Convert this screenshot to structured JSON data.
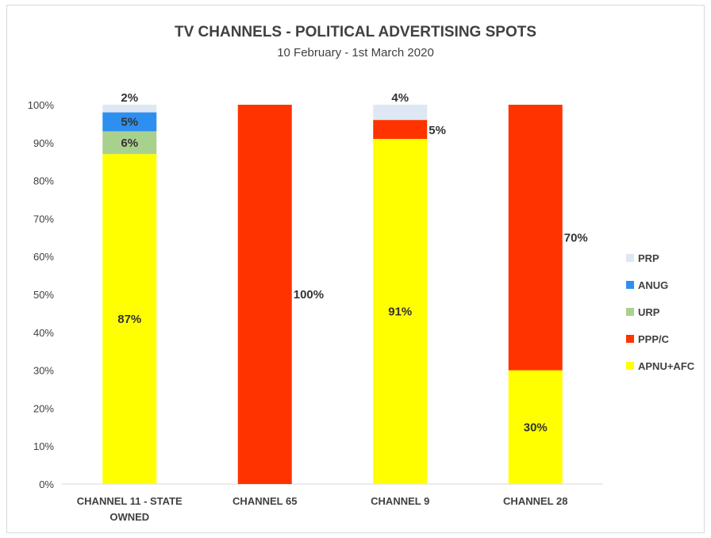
{
  "chart_data": {
    "type": "bar",
    "stacked": true,
    "title": "TV CHANNELS - POLITICAL ADVERTISING SPOTS",
    "subtitle": "10 February - 1st March 2020",
    "categories": [
      [
        "CHANNEL 11 - STATE",
        "OWNED"
      ],
      [
        "CHANNEL 65"
      ],
      [
        "CHANNEL 9"
      ],
      [
        "CHANNEL 28"
      ]
    ],
    "ylim": [
      0,
      100
    ],
    "yticks": [
      0,
      10,
      20,
      30,
      40,
      50,
      60,
      70,
      80,
      90,
      100
    ],
    "ytick_labels": [
      "0%",
      "10%",
      "20%",
      "30%",
      "40%",
      "50%",
      "60%",
      "70%",
      "80%",
      "90%",
      "100%"
    ],
    "grid": false,
    "legend_placement": "right",
    "series": [
      {
        "name": "APNU+AFC",
        "color": "#ffff00",
        "values": [
          87,
          0,
          91,
          30
        ],
        "labels": [
          "87%",
          "",
          "91%",
          "30%"
        ]
      },
      {
        "name": "PPP/C",
        "color": "#ff3300",
        "values": [
          0,
          100,
          5,
          70
        ],
        "labels": [
          "",
          "100%",
          "5%",
          "70%"
        ]
      },
      {
        "name": "URP",
        "color": "#a9d18e",
        "values": [
          6,
          0,
          0,
          0
        ],
        "labels": [
          "6%",
          "",
          "",
          ""
        ]
      },
      {
        "name": "ANUG",
        "color": "#2e8ff0",
        "values": [
          5,
          0,
          0,
          0
        ],
        "labels": [
          "5%",
          "",
          "",
          ""
        ]
      },
      {
        "name": "PRP",
        "color": "#dde8f4",
        "values": [
          2,
          0,
          4,
          0
        ],
        "labels": [
          "2%",
          "",
          "4%",
          ""
        ]
      }
    ],
    "legend_order": [
      "PRP",
      "ANUG",
      "URP",
      "PPP/C",
      "APNU+AFC"
    ]
  }
}
